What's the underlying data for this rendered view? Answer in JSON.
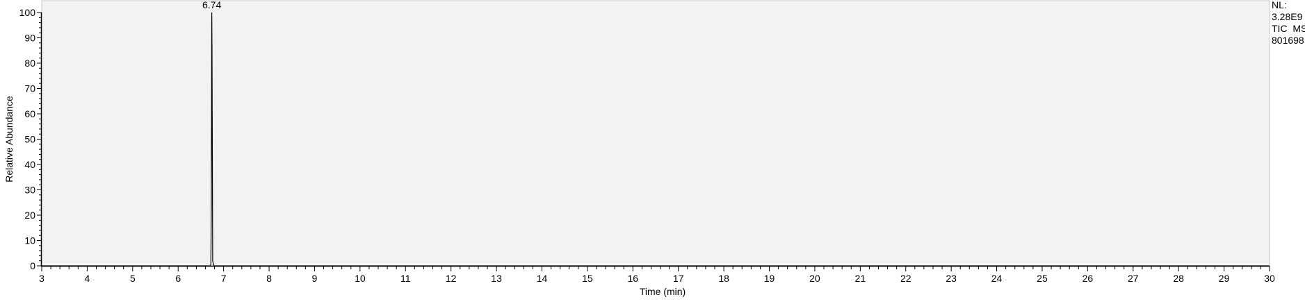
{
  "chart_data": {
    "type": "line",
    "title": "",
    "xlabel": "Time (min)",
    "ylabel": "Relative Abundance",
    "xlim": [
      3,
      30
    ],
    "ylim": [
      0,
      100
    ],
    "x_ticks_major": [
      3,
      4,
      5,
      6,
      7,
      8,
      9,
      10,
      11,
      12,
      13,
      14,
      15,
      16,
      17,
      18,
      19,
      20,
      21,
      22,
      23,
      24,
      25,
      26,
      27,
      28,
      29,
      30
    ],
    "y_ticks_major": [
      0,
      10,
      20,
      30,
      40,
      50,
      60,
      70,
      80,
      90,
      100
    ],
    "grid": false,
    "legend": "none",
    "series": [
      {
        "points": [
          {
            "x": 3.0,
            "y": 0.0
          },
          {
            "x": 6.7,
            "y": 0.0
          },
          {
            "x": 6.72,
            "y": 0.5
          },
          {
            "x": 6.73,
            "y": 24
          },
          {
            "x": 6.74,
            "y": 100
          },
          {
            "x": 6.745,
            "y": 86
          },
          {
            "x": 6.76,
            "y": 2
          },
          {
            "x": 6.78,
            "y": 0.3
          },
          {
            "x": 6.8,
            "y": 0.0
          },
          {
            "x": 30.0,
            "y": 0.0
          }
        ]
      }
    ],
    "peak_labels": [
      {
        "x": 6.74,
        "y": 100,
        "label": "6.74"
      }
    ],
    "annotation_lines": [
      "NL:",
      "3.28E9",
      "TIC  MS",
      "801698"
    ],
    "colors": {
      "plot_background": "#f2f2f2",
      "trace": "#000000",
      "axis": "#000000",
      "page_background": "#ffffff"
    }
  }
}
